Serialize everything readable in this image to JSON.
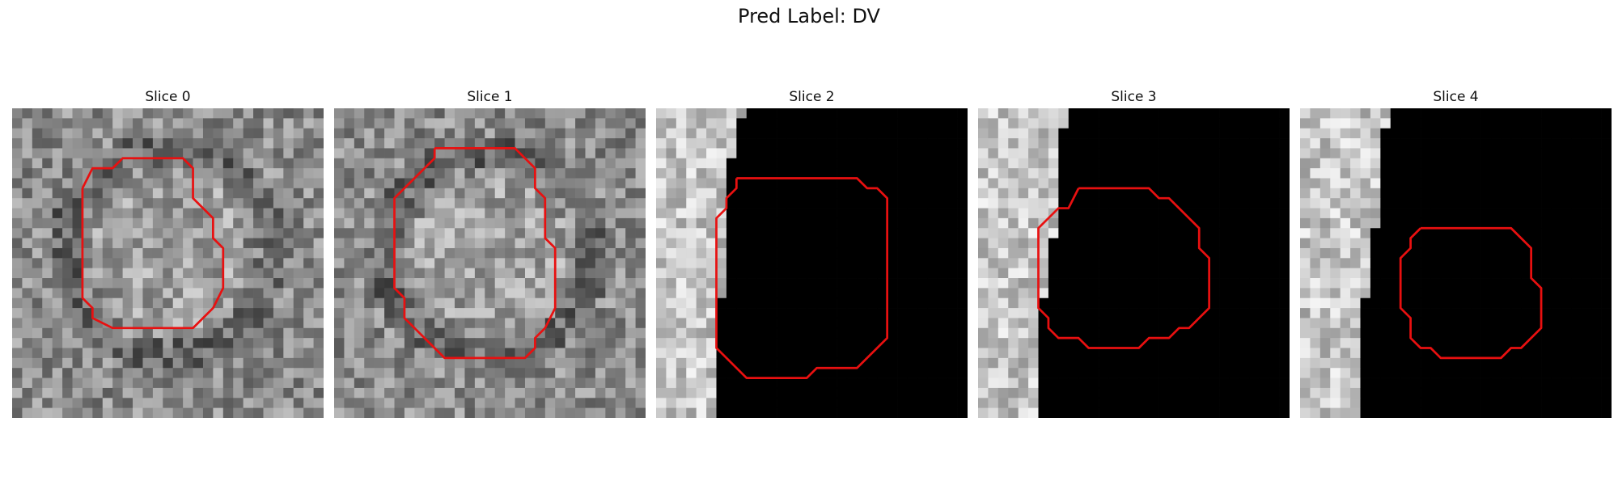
{
  "figure": {
    "title": "Pred Label: DV",
    "contour_color": "#e81010"
  },
  "slices": [
    {
      "title": "Slice 0",
      "dark_region_left_columns": null
    },
    {
      "title": "Slice 1",
      "dark_region_left_columns": null
    },
    {
      "title": "Slice 2",
      "dark_region_left_columns": [
        9,
        8,
        8,
        8,
        8,
        7,
        7,
        7,
        7,
        7,
        7,
        7,
        7,
        7,
        7,
        7,
        7,
        7,
        7,
        6,
        6,
        6,
        6,
        6,
        6,
        6,
        6,
        6,
        6,
        6,
        6
      ]
    },
    {
      "title": "Slice 3",
      "dark_region_left_columns": [
        9,
        9,
        8,
        8,
        8,
        8,
        8,
        8,
        8,
        8,
        8,
        8,
        8,
        7,
        7,
        7,
        7,
        7,
        7,
        6,
        6,
        6,
        6,
        6,
        6,
        6,
        6,
        6,
        6,
        6,
        6
      ]
    },
    {
      "title": "Slice 4",
      "dark_region_left_columns": [
        9,
        9,
        8,
        8,
        8,
        8,
        8,
        8,
        8,
        8,
        8,
        8,
        7,
        7,
        7,
        7,
        7,
        7,
        7,
        6,
        6,
        6,
        6,
        6,
        6,
        6,
        6,
        6,
        6,
        6,
        6
      ]
    }
  ]
}
